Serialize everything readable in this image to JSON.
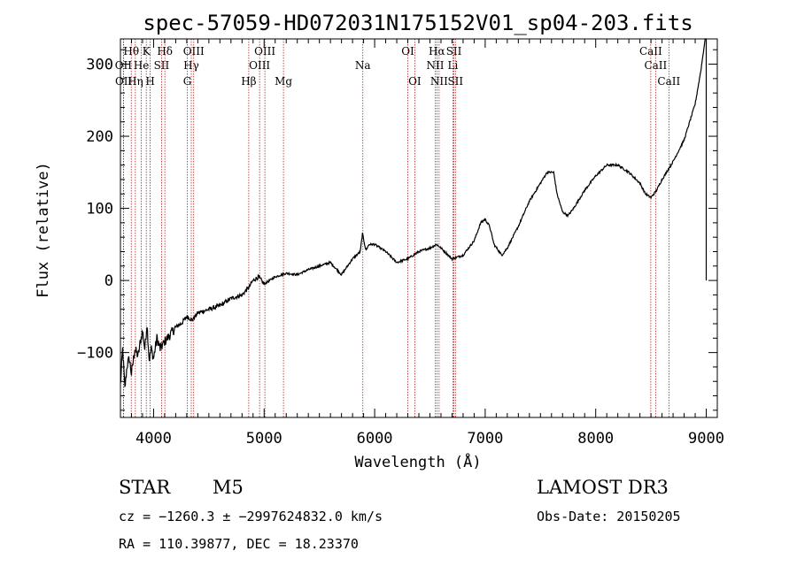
{
  "chart_data": {
    "type": "line",
    "title": "spec-57059-HD072031N175152V01_sp04-203.fits",
    "xlabel": "Wavelength (Å)",
    "ylabel": "Flux (relative)",
    "xlim": [
      3700,
      9100
    ],
    "ylim": [
      -190,
      335
    ],
    "x_ticks": [
      4000,
      5000,
      6000,
      7000,
      8000,
      9000
    ],
    "y_ticks": [
      -100,
      0,
      100,
      200,
      300
    ],
    "grid": false,
    "series": [
      {
        "values": [
          [
            3700,
            -145
          ],
          [
            3720,
            -95
          ],
          [
            3740,
            -150
          ],
          [
            3760,
            -118
          ],
          [
            3780,
            -108
          ],
          [
            3800,
            -130
          ],
          [
            3830,
            -95
          ],
          [
            3860,
            -105
          ],
          [
            3880,
            -85
          ],
          [
            3900,
            -70
          ],
          [
            3920,
            -95
          ],
          [
            3940,
            -60
          ],
          [
            3960,
            -110
          ],
          [
            3980,
            -95
          ],
          [
            4000,
            -108
          ],
          [
            4030,
            -80
          ],
          [
            4060,
            -95
          ],
          [
            4100,
            -85
          ],
          [
            4150,
            -75
          ],
          [
            4200,
            -65
          ],
          [
            4250,
            -60
          ],
          [
            4300,
            -50
          ],
          [
            4350,
            -55
          ],
          [
            4400,
            -45
          ],
          [
            4500,
            -40
          ],
          [
            4600,
            -35
          ],
          [
            4700,
            -25
          ],
          [
            4800,
            -20
          ],
          [
            4860,
            -10
          ],
          [
            4900,
            0
          ],
          [
            4950,
            5
          ],
          [
            5000,
            -5
          ],
          [
            5100,
            5
          ],
          [
            5200,
            10
          ],
          [
            5300,
            8
          ],
          [
            5400,
            15
          ],
          [
            5500,
            20
          ],
          [
            5600,
            25
          ],
          [
            5700,
            8
          ],
          [
            5800,
            30
          ],
          [
            5870,
            40
          ],
          [
            5890,
            65
          ],
          [
            5920,
            42
          ],
          [
            5950,
            50
          ],
          [
            6000,
            50
          ],
          [
            6100,
            40
          ],
          [
            6200,
            25
          ],
          [
            6300,
            30
          ],
          [
            6400,
            40
          ],
          [
            6500,
            45
          ],
          [
            6560,
            50
          ],
          [
            6600,
            45
          ],
          [
            6700,
            30
          ],
          [
            6800,
            35
          ],
          [
            6900,
            55
          ],
          [
            6960,
            80
          ],
          [
            7000,
            85
          ],
          [
            7040,
            75
          ],
          [
            7080,
            50
          ],
          [
            7150,
            35
          ],
          [
            7200,
            45
          ],
          [
            7300,
            75
          ],
          [
            7400,
            110
          ],
          [
            7500,
            135
          ],
          [
            7560,
            150
          ],
          [
            7620,
            150
          ],
          [
            7650,
            120
          ],
          [
            7700,
            95
          ],
          [
            7750,
            90
          ],
          [
            7800,
            100
          ],
          [
            7900,
            125
          ],
          [
            8000,
            145
          ],
          [
            8100,
            160
          ],
          [
            8200,
            160
          ],
          [
            8300,
            150
          ],
          [
            8400,
            135
          ],
          [
            8450,
            120
          ],
          [
            8500,
            115
          ],
          [
            8550,
            125
          ],
          [
            8600,
            140
          ],
          [
            8700,
            165
          ],
          [
            8800,
            195
          ],
          [
            8850,
            220
          ],
          [
            8900,
            245
          ],
          [
            8950,
            290
          ],
          [
            8990,
            335
          ]
        ]
      }
    ],
    "spectral_lines": [
      {
        "label": "Hθ",
        "x": 3798,
        "row": 1
      },
      {
        "label": "OII",
        "x": 3727,
        "row": 2
      },
      {
        "label": "OII",
        "x": 3729,
        "row": 3
      },
      {
        "label": "He",
        "x": 3889,
        "row": 2
      },
      {
        "label": "Hη",
        "x": 3835,
        "row": 3
      },
      {
        "label": "K",
        "x": 3934,
        "row": 1
      },
      {
        "label": "H",
        "x": 3969,
        "row": 3
      },
      {
        "label": "SII",
        "x": 4072,
        "row": 2
      },
      {
        "label": "Hδ",
        "x": 4102,
        "row": 1
      },
      {
        "label": "OIII",
        "x": 4363,
        "row": 1
      },
      {
        "label": "Hγ",
        "x": 4341,
        "row": 2
      },
      {
        "label": "G",
        "x": 4305,
        "row": 3
      },
      {
        "label": "Hβ",
        "x": 4861,
        "row": 3
      },
      {
        "label": "OIII",
        "x": 5007,
        "row": 1
      },
      {
        "label": "OIII",
        "x": 4959,
        "row": 2
      },
      {
        "label": "Mg",
        "x": 5175,
        "row": 3
      },
      {
        "label": "Na",
        "x": 5893,
        "row": 2
      },
      {
        "label": "OI",
        "x": 6300,
        "row": 1
      },
      {
        "label": "OI",
        "x": 6363,
        "row": 3
      },
      {
        "label": "Hα",
        "x": 6563,
        "row": 1
      },
      {
        "label": "NII",
        "x": 6548,
        "row": 2
      },
      {
        "label": "NII",
        "x": 6583,
        "row": 3
      },
      {
        "label": "SII",
        "x": 6717,
        "row": 1
      },
      {
        "label": "Li",
        "x": 6708,
        "row": 2
      },
      {
        "label": "SII",
        "x": 6731,
        "row": 3
      },
      {
        "label": "CaII",
        "x": 8498,
        "row": 1
      },
      {
        "label": "CaII",
        "x": 8542,
        "row": 2
      },
      {
        "label": "CaII",
        "x": 8662,
        "row": 3
      }
    ]
  },
  "info": {
    "object_class": "STAR",
    "subclass": "M5",
    "survey": "LAMOST DR3",
    "redshift_text": "cz = −1260.3 ± −2997624832.0 km/s",
    "obs_date_text": "Obs-Date: 20150205",
    "coords_text": "RA = 110.39877, DEC =  18.23370"
  },
  "colors": {
    "line_marker": "#b22222",
    "spectrum": "#000000"
  }
}
